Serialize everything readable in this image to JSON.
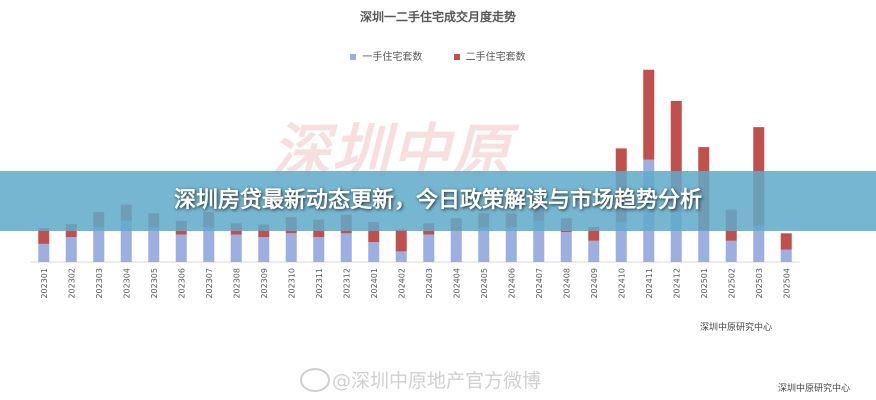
{
  "chart_data": {
    "type": "bar",
    "stacked": true,
    "title": "深圳一二手住宅成交月度走势",
    "categories": [
      "202301",
      "202302",
      "202303",
      "202304",
      "202305",
      "202306",
      "202307",
      "202308",
      "202309",
      "202310",
      "202311",
      "202312",
      "202401",
      "202402",
      "202403",
      "202404",
      "202405",
      "202406",
      "202407",
      "202408",
      "202409",
      "202410",
      "202411",
      "202412",
      "202501",
      "202502",
      "202503",
      "202504"
    ],
    "series": [
      {
        "name": "一手住宅套数",
        "color": "#9daee0",
        "values": [
          1.45,
          2.0,
          2.8,
          3.3,
          2.8,
          2.2,
          2.8,
          2.2,
          2.0,
          2.3,
          2.0,
          2.3,
          1.6,
          0.85,
          2.2,
          2.5,
          2.8,
          2.8,
          3.3,
          2.4,
          1.7,
          3.2,
          8.2,
          4.0,
          2.5,
          1.7,
          2.9,
          1.0
        ]
      },
      {
        "name": "二手住宅套数",
        "color": "#c0504d",
        "values": [
          1.25,
          1.05,
          1.2,
          1.3,
          1.1,
          1.1,
          1.2,
          0.9,
          1.0,
          1.3,
          1.4,
          1.5,
          1.6,
          1.75,
          0.9,
          1.0,
          1.1,
          1.1,
          1.2,
          1.1,
          1.1,
          5.9,
          7.2,
          8.9,
          6.7,
          2.5,
          7.9,
          1.3
        ]
      }
    ],
    "ylim": [
      0,
      16.5
    ],
    "grid": false,
    "legend": "top-center"
  },
  "watermark_text": "深圳中原",
  "headline": "深圳房贷最新动态更新，今日政策解读与市场趋势分析",
  "source_label": "深圳中原研究中心",
  "weibo_watermark": "@深圳中原地产官方微博",
  "corner_source": "深圳中原研究中心",
  "icons": {
    "weibo": "weibo-icon"
  }
}
